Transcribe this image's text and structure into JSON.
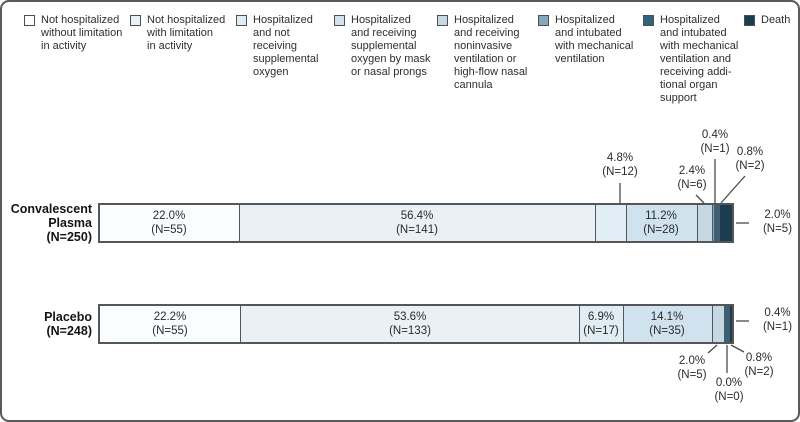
{
  "figure": {
    "background": "#ffffff",
    "border_color": "#58595b"
  },
  "legend": {
    "items": [
      {
        "label": "Not hospitalized without limitation in activity",
        "color": "#fdfefe",
        "lines": [
          "Not hospitalized",
          "without limitation",
          "in activity"
        ]
      },
      {
        "label": "Not hospitalized with limitation in activity",
        "color": "#e9f1f7",
        "lines": [
          "Not hospitalized",
          "with limitation",
          "in activity"
        ]
      },
      {
        "label": "Hospitalized and not receiving supplemental oxygen",
        "color": "#e1edf4",
        "lines": [
          "Hospitalized",
          "and not",
          "receiving",
          "supplemental",
          "oxygen"
        ]
      },
      {
        "label": "Hospitalized and receiving supplemental oxygen by mask or nasal prongs",
        "color": "#cfe2ee",
        "lines": [
          "Hospitalized",
          "and receiving",
          "supplemental",
          "oxygen by mask",
          "or nasal prongs"
        ]
      },
      {
        "label": "Hospitalized and receiving noninvasive ventilation or high-flow nasal cannula",
        "color": "#c6d9e3",
        "lines": [
          "Hospitalized",
          "and receiving",
          "noninvasive",
          "ventilation or",
          "high-flow nasal",
          "cannula"
        ]
      },
      {
        "label": "Hospitalized and intubated with mechanical ventilation",
        "color": "#84a9bd",
        "lines": [
          "Hospitalized",
          "and intubated",
          "with mechanical",
          "ventilation"
        ]
      },
      {
        "label": "Hospitalized and intubated with mechanical ventilation and receiving additional organ support",
        "color": "#33617e",
        "lines": [
          "Hospitalized",
          "and intubated",
          "with mechanical",
          "ventilation and",
          "receiving addi-",
          "tional organ",
          "support"
        ]
      },
      {
        "label": "Death",
        "color": "#1c3d50",
        "lines": [
          "Death"
        ]
      }
    ]
  },
  "chart_data": {
    "type": "bar",
    "variant": "stacked-horizontal-100pct",
    "legend_position": "top",
    "categories": [
      "Not hospitalized without limitation in activity",
      "Not hospitalized with limitation in activity",
      "Hospitalized and not receiving supplemental oxygen",
      "Hospitalized and receiving supplemental oxygen by mask or nasal prongs",
      "Hospitalized and receiving noninvasive ventilation or high-flow nasal cannula",
      "Hospitalized and intubated with mechanical ventilation",
      "Hospitalized and intubated with mechanical ventilation and receiving additional organ support",
      "Death"
    ],
    "colors": [
      "#fafdfd",
      "#e9f1f7",
      "#e1edf4",
      "#cfe2ee",
      "#c6d9e3",
      "#84a9bd",
      "#33617e",
      "#1c3d50"
    ],
    "series": [
      {
        "name": "Convalescent Plasma",
        "total_n": 250,
        "percents": [
          22.0,
          56.4,
          4.8,
          11.2,
          2.4,
          0.4,
          0.8,
          2.0
        ],
        "counts": [
          55,
          141,
          12,
          28,
          6,
          1,
          2,
          5
        ]
      },
      {
        "name": "Placebo",
        "total_n": 248,
        "percents": [
          22.2,
          53.6,
          6.9,
          14.1,
          2.0,
          0.0,
          0.8,
          0.4
        ],
        "counts": [
          55,
          133,
          17,
          35,
          5,
          0,
          2,
          1
        ]
      }
    ]
  },
  "row_labels": {
    "plasma": {
      "line1": "Convalescent",
      "line2": "Plasma",
      "line3": "(N=250)"
    },
    "placebo": {
      "line1": "Placebo",
      "line2": "(N=248)"
    }
  },
  "labels": {
    "plasma": {
      "seg1": {
        "pct": "22.0%",
        "n": "(N=55)"
      },
      "seg2": {
        "pct": "56.4%",
        "n": "(N=141)"
      },
      "seg3": {
        "pct": "4.8%",
        "n": "(N=12)"
      },
      "seg4": {
        "pct": "11.2%",
        "n": "(N=28)"
      },
      "seg5": {
        "pct": "2.4%",
        "n": "(N=6)"
      },
      "seg6": {
        "pct": "0.4%",
        "n": "(N=1)"
      },
      "seg7": {
        "pct": "0.8%",
        "n": "(N=2)"
      },
      "seg8": {
        "pct": "2.0%",
        "n": "(N=5)"
      }
    },
    "placebo": {
      "seg1": {
        "pct": "22.2%",
        "n": "(N=55)"
      },
      "seg2": {
        "pct": "53.6%",
        "n": "(N=133)"
      },
      "seg3": {
        "pct": "6.9%",
        "n": "(N=17)"
      },
      "seg4": {
        "pct": "14.1%",
        "n": "(N=35)"
      },
      "seg5": {
        "pct": "2.0%",
        "n": "(N=5)"
      },
      "seg6": {
        "pct": "0.0%",
        "n": "(N=0)"
      },
      "seg7": {
        "pct": "0.8%",
        "n": "(N=2)"
      },
      "seg8": {
        "pct": "0.4%",
        "n": "(N=1)"
      }
    }
  }
}
